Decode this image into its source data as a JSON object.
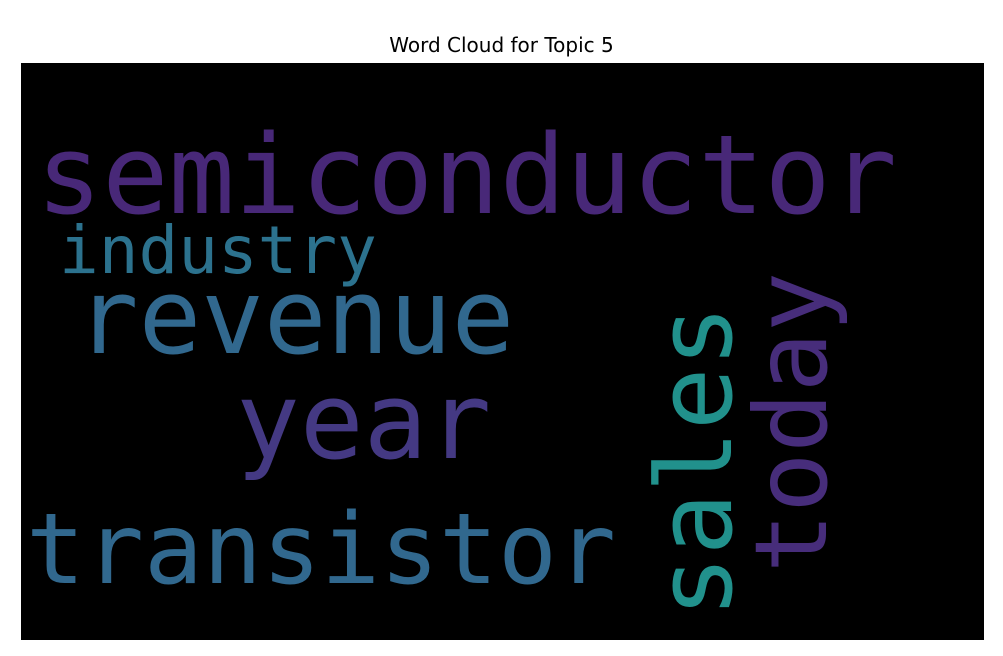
{
  "chart_data": {
    "type": "wordcloud",
    "title": "Word Cloud for Topic 5",
    "background": "#000000",
    "words": [
      {
        "text": "semiconductor",
        "weight": 1.0,
        "orientation": "horizontal",
        "color": "#482878"
      },
      {
        "text": "revenue",
        "weight": 0.95,
        "orientation": "horizontal",
        "color": "#31688e"
      },
      {
        "text": "transistor",
        "weight": 0.85,
        "orientation": "horizontal",
        "color": "#31688e"
      },
      {
        "text": "year",
        "weight": 0.85,
        "orientation": "horizontal",
        "color": "#443983"
      },
      {
        "text": "sales",
        "weight": 0.95,
        "orientation": "vertical",
        "color": "#21918c"
      },
      {
        "text": "today",
        "weight": 0.85,
        "orientation": "vertical",
        "color": "#472d7b"
      },
      {
        "text": "industry",
        "weight": 0.55,
        "orientation": "horizontal",
        "color": "#2c728e"
      }
    ]
  }
}
